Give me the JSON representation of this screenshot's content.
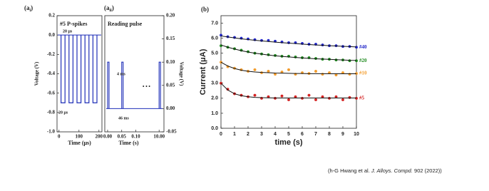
{
  "chart_data": [
    {
      "type": "pulse-train",
      "panel_label": {
        "main": "(a",
        "sub": "i",
        "close": ")"
      },
      "annotations": [
        "#5 P-spikes",
        "20 μs",
        "20 μs"
      ],
      "x_label": "Time (μs)",
      "y_label": "Voltage (V)",
      "x": [
        10,
        50,
        90,
        130,
        170
      ],
      "values": [
        -0.7,
        -0.7,
        -0.7,
        -0.7,
        -0.7
      ],
      "color": "#1f2fb8",
      "xlim": [
        -10,
        215
      ],
      "xticks": [
        0,
        100,
        200
      ],
      "ylim": [
        -1.0,
        0.2
      ],
      "yticks": [
        {
          "value": -1.0,
          "label": "-1.0"
        },
        {
          "value": -0.8,
          "label": "-0.8"
        },
        {
          "value": -0.6,
          "label": "-0.6"
        },
        {
          "value": -0.4,
          "label": "-0.4"
        },
        {
          "value": -0.2,
          "label": "-0.2"
        },
        {
          "value": 0.0,
          "label": "0.0"
        },
        {
          "value": 0.2,
          "label": "0.2"
        }
      ]
    },
    {
      "type": "spikes",
      "panel_label": {
        "main": "(a",
        "sub": "ii",
        "close": ")"
      },
      "annotations": [
        "Reading pulse",
        "4 ms",
        "46 ms",
        "• • •"
      ],
      "x_label": "Time (s)",
      "y_label": "Voltage (V)",
      "x": [
        0,
        0.05,
        10.0
      ],
      "values": [
        0.1,
        0.1,
        0.1
      ],
      "color": "#1f2fb8",
      "xlim": [
        -0.01,
        10.01
      ],
      "xticks": [
        {
          "value": 0.0,
          "label": "0.00"
        },
        {
          "value": 0.05,
          "label": "0.05"
        },
        {
          "value": 0.1,
          "label": "0.10"
        },
        {
          "value": 10.0,
          "label": "10.00"
        }
      ],
      "y2lim": [
        -0.05,
        0.2
      ],
      "y2ticks": [
        {
          "value": -0.05,
          "label": "-0.05"
        },
        {
          "value": 0.0,
          "label": "0.00"
        },
        {
          "value": 0.05,
          "label": "0.05"
        },
        {
          "value": 0.1,
          "label": "0.10"
        },
        {
          "value": 0.15,
          "label": "0.15"
        },
        {
          "value": 0.2,
          "label": "0.20"
        }
      ]
    },
    {
      "type": "scatter",
      "panel_label": {
        "main": "(b)"
      },
      "x_label": "time (s)",
      "y_label": "Current (μA)",
      "x": [
        0,
        0.5,
        1,
        1.5,
        2,
        2.5,
        3,
        3.5,
        4,
        4.5,
        5,
        5.5,
        6,
        6.5,
        7,
        7.5,
        8,
        8.5,
        9,
        9.5,
        10
      ],
      "xlim": [
        0,
        10
      ],
      "xticks": [
        0,
        1,
        2,
        3,
        4,
        5,
        6,
        7,
        8,
        9,
        10
      ],
      "ylim": [
        0,
        7.5
      ],
      "yticks": [
        {
          "value": 0,
          "label": "0.0"
        },
        {
          "value": 1,
          "label": "1.0"
        },
        {
          "value": 2,
          "label": "2.0"
        },
        {
          "value": 3,
          "label": "3.0"
        },
        {
          "value": 4,
          "label": "4.0"
        },
        {
          "value": 5,
          "label": "5.0"
        },
        {
          "value": 6,
          "label": "6.0"
        },
        {
          "value": 7,
          "label": "7.0"
        }
      ],
      "series": [
        {
          "name": "#40",
          "color": "#1f24c8",
          "values": [
            6.2,
            6.1,
            6.05,
            6.0,
            5.95,
            5.9,
            5.85,
            5.85,
            5.8,
            5.75,
            5.7,
            5.7,
            5.65,
            5.6,
            5.6,
            5.55,
            5.5,
            5.5,
            5.45,
            5.45,
            5.4
          ],
          "fit": [
            6.15,
            6.08,
            6.02,
            5.96,
            5.91,
            5.86,
            5.82,
            5.78,
            5.74,
            5.7,
            5.67,
            5.64,
            5.61,
            5.58,
            5.55,
            5.53,
            5.5,
            5.48,
            5.46,
            5.44,
            5.42
          ]
        },
        {
          "name": "#20",
          "color": "#1e8a1e",
          "values": [
            5.5,
            5.4,
            5.3,
            5.2,
            5.1,
            5.0,
            4.95,
            4.9,
            4.85,
            4.8,
            4.8,
            4.75,
            4.7,
            4.7,
            4.65,
            4.6,
            4.6,
            4.55,
            4.55,
            4.5,
            4.5
          ],
          "fit": [
            5.55,
            5.4,
            5.28,
            5.17,
            5.08,
            5.0,
            4.94,
            4.88,
            4.83,
            4.79,
            4.75,
            4.72,
            4.69,
            4.66,
            4.63,
            4.61,
            4.59,
            4.57,
            4.55,
            4.53,
            4.52
          ]
        },
        {
          "name": "#10",
          "color": "#f39c2c",
          "values": [
            4.4,
            4.1,
            4.0,
            3.9,
            3.8,
            3.9,
            3.7,
            3.8,
            3.6,
            3.75,
            3.9,
            3.6,
            3.7,
            3.65,
            3.8,
            3.6,
            3.7,
            3.55,
            3.7,
            3.6,
            3.65
          ],
          "fit": [
            4.4,
            4.15,
            3.98,
            3.87,
            3.8,
            3.75,
            3.72,
            3.7,
            3.68,
            3.67,
            3.66,
            3.65,
            3.65,
            3.64,
            3.64,
            3.64,
            3.63,
            3.63,
            3.63,
            3.63,
            3.63
          ]
        },
        {
          "name": "#5",
          "color": "#d42222",
          "values": [
            3.0,
            2.6,
            2.3,
            2.2,
            2.1,
            2.2,
            2.0,
            2.1,
            2.0,
            2.15,
            1.9,
            2.1,
            2.0,
            2.2,
            1.9,
            2.1,
            2.0,
            2.1,
            1.9,
            2.05,
            2.0
          ],
          "fit": [
            3.0,
            2.55,
            2.3,
            2.17,
            2.1,
            2.06,
            2.04,
            2.03,
            2.02,
            2.02,
            2.02,
            2.02,
            2.02,
            2.02,
            2.02,
            2.02,
            2.02,
            2.02,
            2.02,
            2.02,
            2.02
          ]
        }
      ]
    }
  ],
  "citation": {
    "prefix": "(h-G Hwang et al. ",
    "journal": "J. Alloys. Compd.",
    "suffix": " 902 (2022))"
  }
}
